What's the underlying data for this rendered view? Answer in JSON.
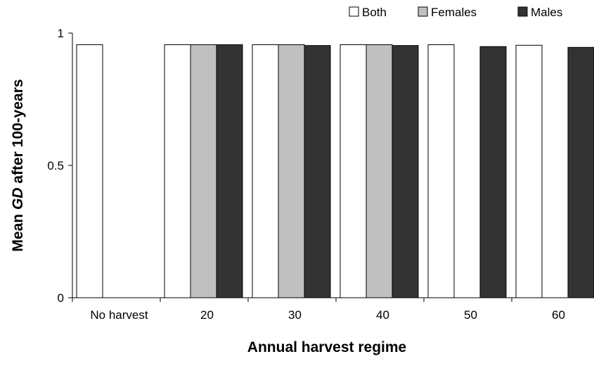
{
  "chart_data": {
    "type": "bar",
    "title": "",
    "xlabel": "Annual harvest regime",
    "ylabel_parts": [
      "Mean ",
      "GD",
      " after 100-years"
    ],
    "categories": [
      "No harvest",
      "20",
      "30",
      "40",
      "50",
      "60"
    ],
    "y_ticks": [
      "0",
      "0.5",
      "1"
    ],
    "ylim": [
      0,
      1
    ],
    "grid": false,
    "legend_position": "top-right",
    "series": [
      {
        "name": "Both",
        "color": "#ffffff",
        "values": [
          0.956,
          0.956,
          0.956,
          0.956,
          0.956,
          0.954
        ]
      },
      {
        "name": "Females",
        "color": "#c0c0c0",
        "values": [
          null,
          0.956,
          0.956,
          0.956,
          null,
          null
        ]
      },
      {
        "name": "Males",
        "color": "#333333",
        "values": [
          null,
          0.956,
          0.953,
          0.953,
          0.949,
          0.946
        ]
      }
    ]
  }
}
